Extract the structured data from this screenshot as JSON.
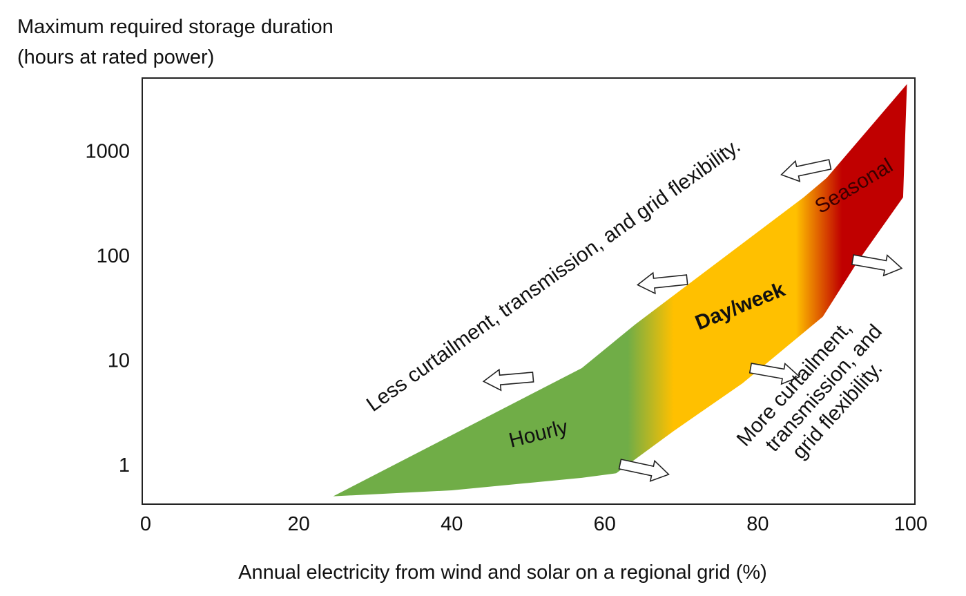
{
  "chart_data": {
    "type": "area",
    "title": "",
    "ylabel_lines": [
      "Maximum required storage duration",
      "(hours at rated power)"
    ],
    "xlabel": "Annual electricity from wind and solar on a regional grid (%)",
    "xlim": [
      0,
      100
    ],
    "ylim": [
      0.45,
      5000
    ],
    "yscale": "log",
    "x_ticks": [
      "0",
      "20",
      "40",
      "60",
      "80",
      "100"
    ],
    "y_ticks": [
      "1",
      "10",
      "100",
      "1000"
    ],
    "grid": false,
    "region": {
      "upper_boundary": [
        [
          24.5,
          0.5
        ],
        [
          57,
          8.4
        ],
        [
          64,
          22
        ],
        [
          86,
          360
        ],
        [
          89,
          550
        ],
        [
          99.5,
          4350
        ]
      ],
      "lower_boundary": [
        [
          99,
          360
        ],
        [
          93,
          86
        ],
        [
          88.5,
          26
        ],
        [
          78,
          6
        ],
        [
          69,
          2.1
        ],
        [
          61.5,
          0.83
        ],
        [
          57,
          0.75
        ],
        [
          40,
          0.57
        ],
        [
          24.5,
          0.5
        ]
      ]
    },
    "color_zones": [
      {
        "label": "Hourly",
        "color": "#70ad47",
        "x_range": [
          24.5,
          63
        ]
      },
      {
        "label": "Day/week",
        "color": "#ffc000",
        "x_range": [
          69,
          85
        ]
      },
      {
        "label": "Seasonal",
        "color": "#c00000",
        "x_range": [
          91,
          100
        ]
      }
    ],
    "annotations": {
      "less": "Less curtailment, transmission, and grid flexibility.",
      "more_lines": [
        "More curtailment,",
        "transmission, and",
        "grid flexibility."
      ]
    },
    "arrows": {
      "left_count": 3,
      "right_count": 3
    }
  }
}
